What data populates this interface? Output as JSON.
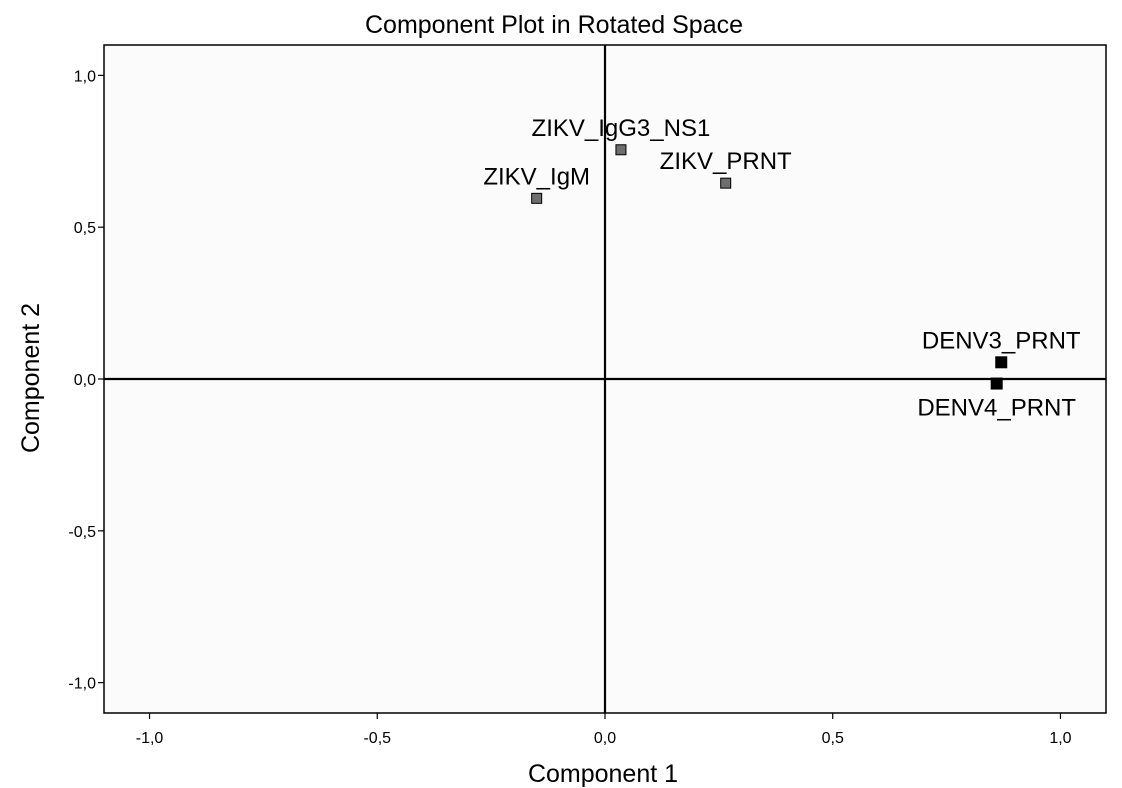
{
  "chart_data": {
    "type": "scatter",
    "title": "Component Plot in Rotated Space",
    "xlabel": "Component 1",
    "ylabel": "Component 2",
    "xlim": [
      -1.1,
      1.1
    ],
    "ylim": [
      -1.1,
      1.1
    ],
    "x_ticks": [
      -1.0,
      -0.5,
      0.0,
      0.5,
      1.0
    ],
    "y_ticks": [
      -1.0,
      -0.5,
      0.0,
      0.5,
      1.0
    ],
    "x_tick_labels": [
      "-1,0",
      "-0,5",
      "0,0",
      "0,5",
      "1,0"
    ],
    "y_tick_labels": [
      "-1,0",
      "-0,5",
      "0,0",
      "0,5",
      "1,0"
    ],
    "grid": false,
    "reference_lines": {
      "x": 0.0,
      "y": 0.0
    },
    "plot_background": "#fbfbfb",
    "points": [
      {
        "label": "ZIKV_IgG3_NS1",
        "x": 0.035,
        "y": 0.755,
        "color": "#6e6e6e",
        "label_position": "above"
      },
      {
        "label": "ZIKV_IgM",
        "x": -0.15,
        "y": 0.595,
        "color": "#6e6e6e",
        "label_position": "above"
      },
      {
        "label": "ZIKV_PRNT",
        "x": 0.265,
        "y": 0.645,
        "color": "#6e6e6e",
        "label_position": "above"
      },
      {
        "label": "DENV3_PRNT",
        "x": 0.87,
        "y": 0.055,
        "color": "#000000",
        "label_position": "above"
      },
      {
        "label": "DENV4_PRNT",
        "x": 0.86,
        "y": -0.015,
        "color": "#000000",
        "label_position": "below"
      }
    ]
  }
}
